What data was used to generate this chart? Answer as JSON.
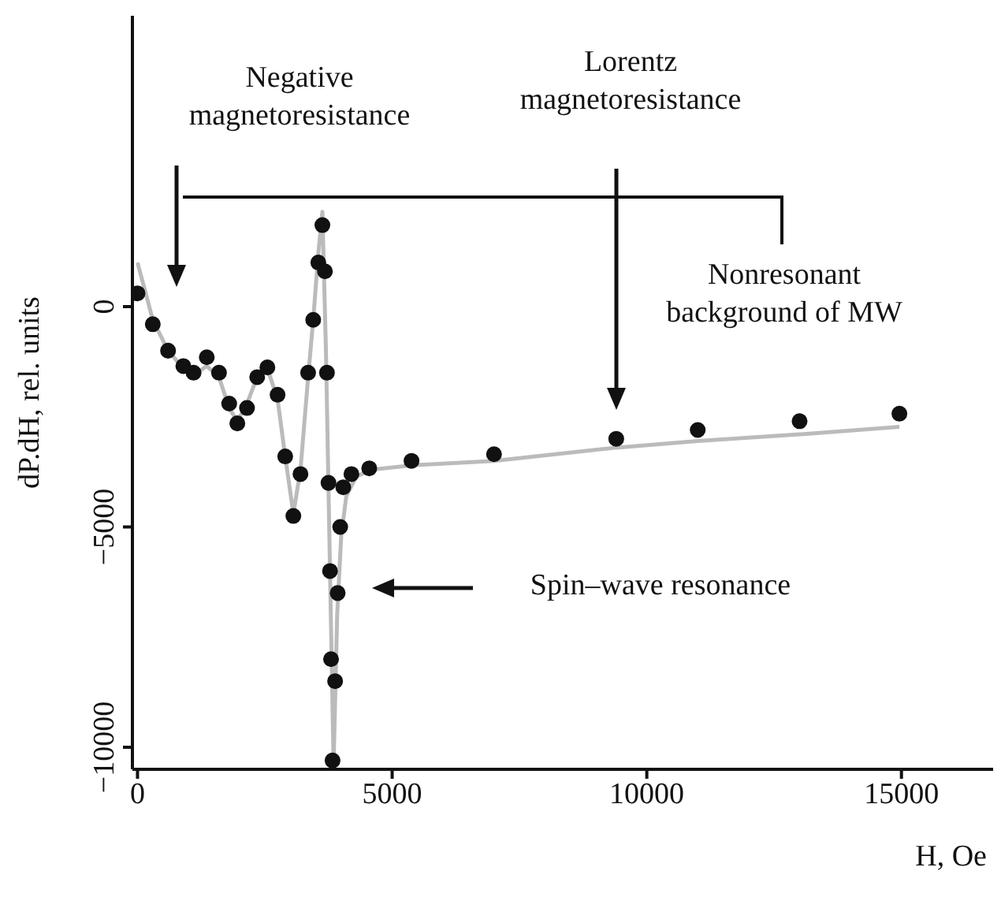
{
  "chart_data": {
    "type": "line",
    "xlabel": "H, Oe",
    "ylabel": "dP.dH, rel. units",
    "annotations": [
      "Negative magnetoresistance",
      "Lorentz magnetoresistance",
      "Nonresonant background of MW",
      "Spin–wave resonance"
    ],
    "xlim": [
      -100,
      16800
    ],
    "ylim": [
      -10500,
      6600
    ],
    "xticks": [
      0,
      5000,
      10000,
      15000
    ],
    "yticks": [
      -10000,
      -5000,
      0
    ],
    "grid": false,
    "series": [
      {
        "type": "scatter",
        "color": "#111111",
        "marker": "circle",
        "x": [
          0,
          300,
          600,
          900,
          1100,
          1360,
          1600,
          1800,
          1960,
          2150,
          2350,
          2550,
          2750,
          2900,
          3060,
          3200,
          3350,
          3450,
          3550,
          3630,
          3680,
          3720,
          3750,
          3780,
          3800,
          3830,
          3880,
          3930,
          3980,
          4040,
          4200,
          4550,
          5380,
          7000,
          9400,
          11000,
          13000,
          14960
        ],
        "values": [
          300,
          -400,
          -1000,
          -1350,
          -1500,
          -1150,
          -1500,
          -2200,
          -2650,
          -2300,
          -1600,
          -1380,
          -2000,
          -3400,
          -4750,
          -3800,
          -1500,
          -300,
          1000,
          1850,
          800,
          -1500,
          -4000,
          -6000,
          -8000,
          -10300,
          -8500,
          -6500,
          -5000,
          -4100,
          -3800,
          -3670,
          -3500,
          -3350,
          -3000,
          -2800,
          -2600,
          -2430
        ]
      },
      {
        "color": "#bbbbbb",
        "marker": "none",
        "x": [
          0,
          300,
          600,
          900,
          1100,
          1360,
          1600,
          1800,
          1960,
          2150,
          2350,
          2550,
          2750,
          2900,
          3060,
          3200,
          3350,
          3450,
          3550,
          3630,
          3700,
          3780,
          3850,
          3920,
          4000,
          4100,
          4300,
          4600,
          5400,
          7000,
          9400,
          11000,
          13000,
          14960
        ],
        "values": [
          1000,
          -300,
          -1000,
          -1400,
          -1550,
          -1350,
          -1600,
          -2300,
          -2600,
          -2200,
          -1600,
          -1400,
          -2100,
          -3400,
          -4700,
          -3700,
          -1600,
          -300,
          1200,
          2150,
          -1000,
          -6000,
          -10400,
          -7000,
          -5200,
          -4300,
          -3850,
          -3700,
          -3600,
          -3500,
          -3200,
          -3050,
          -2900,
          -2730
        ]
      }
    ]
  }
}
